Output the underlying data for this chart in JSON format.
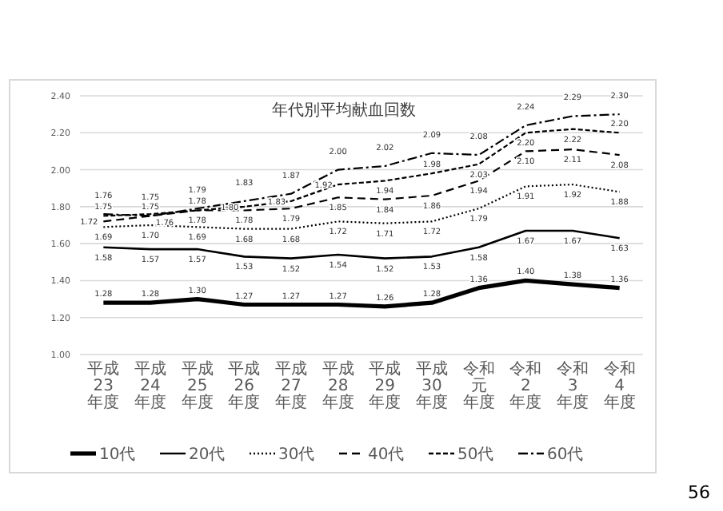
{
  "chart_data": {
    "type": "line",
    "title": "年代別平均献血回数",
    "categories": [
      "平成23年度",
      "平成24年度",
      "平成25年度",
      "平成26年度",
      "平成27年度",
      "平成28年度",
      "平成29年度",
      "平成30年度",
      "令和元年度",
      "令和2年度",
      "令和3年度",
      "令和4年度"
    ],
    "series": [
      {
        "name": "10代",
        "color": "#000000",
        "line_style": "solid",
        "values": [
          1.28,
          1.28,
          1.3,
          1.27,
          1.27,
          1.27,
          1.26,
          1.28,
          1.36,
          1.4,
          1.38,
          1.36
        ],
        "value_labels": [
          "1.28",
          "1.28",
          "1.30",
          "1.27",
          "1.27",
          "1.27",
          "1.26",
          "1.28",
          "1.36",
          "1.40",
          "1.38",
          "1.36"
        ]
      },
      {
        "name": "20代",
        "color": "#000000",
        "line_style": "solid",
        "values": [
          1.58,
          1.57,
          1.57,
          1.53,
          1.52,
          1.54,
          1.52,
          1.53,
          1.58,
          1.67,
          1.67,
          1.63
        ],
        "value_labels": [
          "1.58",
          "1.57",
          "1.57",
          "1.53",
          "1.52",
          "1.54",
          "1.52",
          "1.53",
          "1.58",
          "1.67",
          "1.67",
          "1.63"
        ]
      },
      {
        "name": "30代",
        "color": "#000000",
        "line_style": "dotted",
        "values": [
          1.69,
          1.7,
          1.69,
          1.68,
          1.68,
          1.72,
          1.71,
          1.72,
          1.79,
          1.91,
          1.92,
          1.88
        ],
        "value_labels": [
          "1.69",
          "1.70",
          "1.69",
          "1.68",
          "1.68",
          "1.72",
          "1.71",
          "1.72",
          "1.79",
          "1.91",
          "1.92",
          "1.88"
        ]
      },
      {
        "name": "40代",
        "color": "#000000",
        "line_style": "dashed",
        "values": [
          1.72,
          1.75,
          1.78,
          1.78,
          1.79,
          1.85,
          1.84,
          1.86,
          1.94,
          2.1,
          2.11,
          2.08
        ],
        "value_labels": [
          "1.72",
          "1.75",
          "1.78",
          "1.78",
          "1.79",
          "1.85",
          "1.84",
          "1.86",
          "1.94",
          "2.10",
          "2.11",
          "2.08"
        ]
      },
      {
        "name": "50代",
        "color": "#000000",
        "line_style": "dashed",
        "values": [
          1.75,
          1.76,
          1.78,
          1.8,
          1.83,
          1.92,
          1.94,
          1.98,
          2.03,
          2.2,
          2.22,
          2.2
        ],
        "value_labels": [
          "1.75",
          "1.76",
          "1.78",
          "1.80",
          "1.83",
          "1.92",
          "1.94",
          "1.98",
          "2.03",
          "2.20",
          "2.22",
          "2.20"
        ]
      },
      {
        "name": "60代",
        "color": "#000000",
        "line_style": "dashdot",
        "values": [
          1.76,
          1.75,
          1.79,
          1.83,
          1.87,
          2.0,
          2.02,
          2.09,
          2.08,
          2.24,
          2.29,
          2.3
        ],
        "value_labels": [
          "1.76",
          "1.75",
          "1.79",
          "1.83",
          "1.87",
          "2.00",
          "2.02",
          "2.09",
          "2.08",
          "2.24",
          "2.29",
          "2.30"
        ]
      }
    ],
    "ylim": [
      1.0,
      2.4
    ],
    "yticks": [
      {
        "value": 1.0,
        "label": "1.00"
      },
      {
        "value": 1.2,
        "label": "1.20"
      },
      {
        "value": 1.4,
        "label": "1.40"
      },
      {
        "value": 1.6,
        "label": "1.60"
      },
      {
        "value": 1.8,
        "label": "1.80"
      },
      {
        "value": 2.0,
        "label": "2.00"
      },
      {
        "value": 2.2,
        "label": "2.20"
      },
      {
        "value": 2.4,
        "label": "2.40"
      }
    ],
    "grid": "y",
    "legend": "bottom",
    "marker": "none",
    "annotations": [
      "56"
    ]
  }
}
